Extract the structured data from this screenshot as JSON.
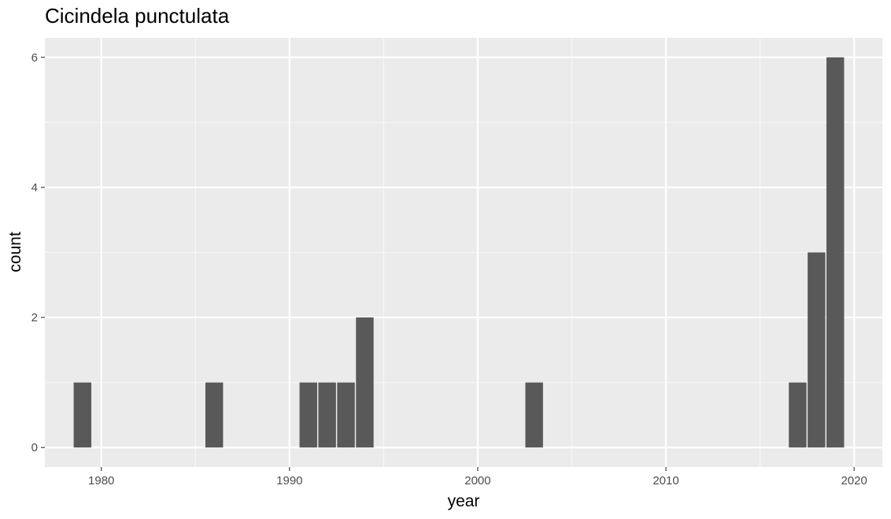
{
  "chart_data": {
    "type": "bar",
    "title": "Cicindela punctulata",
    "xlabel": "year",
    "ylabel": "count",
    "x": [
      1979,
      1986,
      1991,
      1992,
      1993,
      1994,
      2003,
      2017,
      2018,
      2019
    ],
    "values": [
      1,
      1,
      1,
      1,
      1,
      2,
      1,
      1,
      3,
      6
    ],
    "bin_width": 1,
    "xlim": [
      1977,
      2021.5
    ],
    "ylim": [
      -0.3,
      6.3
    ],
    "x_ticks": [
      1980,
      1990,
      2000,
      2010,
      2020
    ],
    "y_ticks": [
      0,
      2,
      4,
      6
    ],
    "grid": true,
    "legend": "none",
    "colors": {
      "panel_background": "#ebebeb",
      "grid_major": "#ffffff",
      "bar_fill": "#595959",
      "tick_text": "#4d4d4d"
    }
  }
}
